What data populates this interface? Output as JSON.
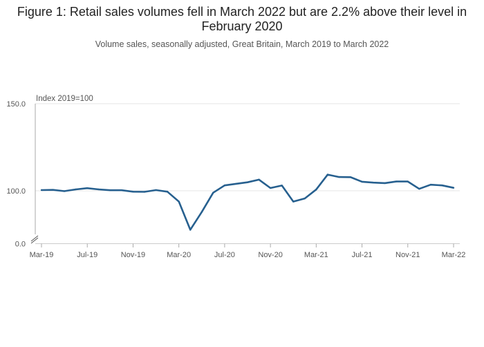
{
  "chart_data": {
    "type": "line",
    "title": "Figure 1: Retail sales volumes fell in March 2022 but are 2.2% above their level in February 2020",
    "subtitle": "Volume sales, seasonally adjusted, Great Britain, March 2019 to March 2022",
    "ylabel": "Index 2019=100",
    "xlabel": "",
    "yticks": [
      "150.0",
      "100.0",
      "0.0"
    ],
    "ylim_visible": [
      77,
      150
    ],
    "axis_break": true,
    "grid": "horizontal",
    "legend": "none",
    "line_color": "#27608f",
    "xtick_labels": [
      "Mar-19",
      "Jul-19",
      "Nov-19",
      "Mar-20",
      "Jul-20",
      "Nov-20",
      "Mar-21",
      "Jul-21",
      "Nov-21",
      "Mar-22"
    ],
    "x": [
      "Mar-19",
      "Apr-19",
      "May-19",
      "Jun-19",
      "Jul-19",
      "Aug-19",
      "Sep-19",
      "Oct-19",
      "Nov-19",
      "Dec-19",
      "Jan-20",
      "Feb-20",
      "Mar-20",
      "Apr-20",
      "May-20",
      "Jun-20",
      "Jul-20",
      "Aug-20",
      "Sep-20",
      "Oct-20",
      "Nov-20",
      "Dec-20",
      "Jan-21",
      "Feb-21",
      "Mar-21",
      "Apr-21",
      "May-21",
      "Jun-21",
      "Jul-21",
      "Aug-21",
      "Sep-21",
      "Oct-21",
      "Nov-21",
      "Dec-21",
      "Jan-22",
      "Feb-22",
      "Mar-22"
    ],
    "series": [
      {
        "values": [
          100.4,
          100.5,
          99.8,
          100.8,
          101.5,
          100.8,
          100.3,
          100.3,
          99.5,
          99.4,
          100.4,
          99.5,
          93.8,
          77.6,
          87.8,
          98.9,
          103.1,
          104.0,
          104.9,
          106.4,
          101.6,
          103.0,
          93.8,
          95.6,
          100.7,
          109.3,
          107.9,
          107.8,
          105.2,
          104.7,
          104.4,
          105.3,
          105.3,
          101.1,
          103.5,
          103.1,
          101.7
        ]
      }
    ]
  }
}
